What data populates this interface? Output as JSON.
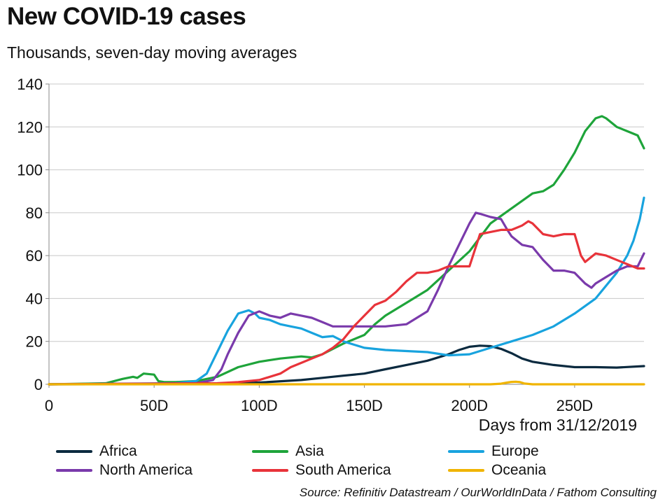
{
  "title": "New COVID-19 cases",
  "subtitle": "Thousands, seven-day moving averages",
  "source": "Source: Refinitiv Datastream / OurWorldInData / Fathom Consulting",
  "chart_data": {
    "type": "line",
    "title": "New COVID-19 cases",
    "subtitle": "Thousands, seven-day moving averages",
    "xlabel": "Days from 31/12/2019",
    "ylabel": "",
    "xlim": [
      0,
      283
    ],
    "ylim": [
      0,
      140
    ],
    "grid": true,
    "legend_position": "bottom",
    "x_ticks": [
      {
        "value": 0,
        "label": "0"
      },
      {
        "value": 50,
        "label": "50D"
      },
      {
        "value": 100,
        "label": "100D"
      },
      {
        "value": 150,
        "label": "150D"
      },
      {
        "value": 200,
        "label": "200D"
      },
      {
        "value": 250,
        "label": "250D"
      }
    ],
    "y_ticks": [
      {
        "value": 0,
        "label": "0"
      },
      {
        "value": 20,
        "label": "20"
      },
      {
        "value": 40,
        "label": "40"
      },
      {
        "value": 60,
        "label": "60"
      },
      {
        "value": 80,
        "label": "80"
      },
      {
        "value": 100,
        "label": "100"
      },
      {
        "value": 120,
        "label": "120"
      },
      {
        "value": 140,
        "label": "140"
      }
    ],
    "series": [
      {
        "name": "Africa",
        "color": "#0b2a3f",
        "x": [
          0,
          80,
          100,
          120,
          130,
          140,
          150,
          160,
          170,
          180,
          190,
          195,
          200,
          205,
          210,
          215,
          220,
          225,
          230,
          240,
          250,
          260,
          270,
          283
        ],
        "y": [
          0,
          0.2,
          0.8,
          2,
          3,
          4,
          5,
          7,
          9,
          11,
          14,
          16,
          17.5,
          18,
          17.8,
          16.5,
          14.5,
          12,
          10.5,
          9,
          8,
          8,
          7.8,
          8.5
        ]
      },
      {
        "name": "Asia",
        "color": "#1ea43a",
        "x": [
          0,
          27,
          35,
          40,
          42,
          45,
          50,
          52,
          55,
          60,
          70,
          80,
          90,
          100,
          110,
          120,
          125,
          130,
          140,
          150,
          155,
          160,
          170,
          180,
          190,
          200,
          210,
          220,
          230,
          235,
          240,
          245,
          250,
          255,
          260,
          263,
          265,
          270,
          275,
          280,
          283
        ],
        "y": [
          0,
          0.5,
          2.5,
          3.5,
          3,
          5,
          4.5,
          1.5,
          1,
          1,
          1.5,
          3.5,
          8,
          10.5,
          12,
          13,
          12.5,
          14,
          19,
          23,
          28,
          32,
          38,
          44,
          53,
          62,
          75,
          82,
          89,
          90,
          93,
          100,
          108,
          118,
          124,
          125,
          124,
          120,
          118,
          116,
          110
        ]
      },
      {
        "name": "Europe",
        "color": "#18a3de",
        "x": [
          0,
          60,
          70,
          75,
          80,
          85,
          90,
          95,
          98,
          100,
          105,
          110,
          115,
          120,
          125,
          130,
          135,
          140,
          150,
          160,
          170,
          180,
          190,
          200,
          210,
          220,
          230,
          240,
          250,
          260,
          270,
          275,
          278,
          281,
          283
        ],
        "y": [
          0,
          0.5,
          1.5,
          5,
          15,
          25,
          33,
          34.5,
          33,
          31,
          30,
          28,
          27,
          26,
          24,
          22,
          22.5,
          20,
          17,
          16,
          15.5,
          15,
          13.5,
          14,
          17,
          20,
          23,
          27,
          33,
          40,
          52,
          60,
          67,
          77,
          87
        ]
      },
      {
        "name": "North America",
        "color": "#7a3aab",
        "x": [
          0,
          70,
          78,
          82,
          85,
          90,
          95,
          100,
          105,
          110,
          115,
          120,
          125,
          130,
          135,
          140,
          150,
          160,
          170,
          180,
          185,
          190,
          195,
          200,
          203,
          205,
          210,
          215,
          218,
          220,
          225,
          230,
          235,
          240,
          245,
          250,
          255,
          258,
          260,
          265,
          270,
          275,
          280,
          283
        ],
        "y": [
          0,
          0.5,
          2,
          7,
          14,
          24,
          32,
          34,
          32,
          31,
          33,
          32,
          31,
          29,
          27,
          27,
          27,
          27,
          28,
          34,
          44,
          55,
          65,
          75,
          80,
          79.5,
          78,
          77,
          72,
          69,
          65,
          64,
          58,
          53,
          53,
          52,
          47,
          45,
          47,
          50,
          53,
          55,
          55,
          61
        ]
      },
      {
        "name": "South America",
        "color": "#e8333a",
        "x": [
          0,
          80,
          90,
          100,
          110,
          115,
          120,
          125,
          130,
          135,
          140,
          145,
          150,
          155,
          160,
          165,
          170,
          175,
          180,
          185,
          190,
          195,
          200,
          205,
          210,
          215,
          220,
          225,
          228,
          230,
          235,
          240,
          245,
          250,
          253,
          255,
          260,
          265,
          270,
          275,
          280,
          283
        ],
        "y": [
          0,
          0.5,
          1,
          2,
          5,
          8,
          10,
          12,
          14,
          17,
          21,
          27,
          32,
          37,
          39,
          43,
          48,
          52,
          52,
          53,
          55,
          55,
          55,
          70,
          71,
          72,
          72,
          74,
          76,
          75,
          70,
          69,
          70,
          70,
          60,
          57,
          61,
          60,
          58,
          56,
          54,
          54
        ]
      },
      {
        "name": "Oceania",
        "color": "#f0b400",
        "x": [
          0,
          210,
          215,
          218,
          220,
          222,
          224,
          226,
          230,
          283
        ],
        "y": [
          0,
          0,
          0.3,
          0.8,
          1.1,
          1.2,
          1,
          0.4,
          0,
          0
        ]
      }
    ]
  }
}
